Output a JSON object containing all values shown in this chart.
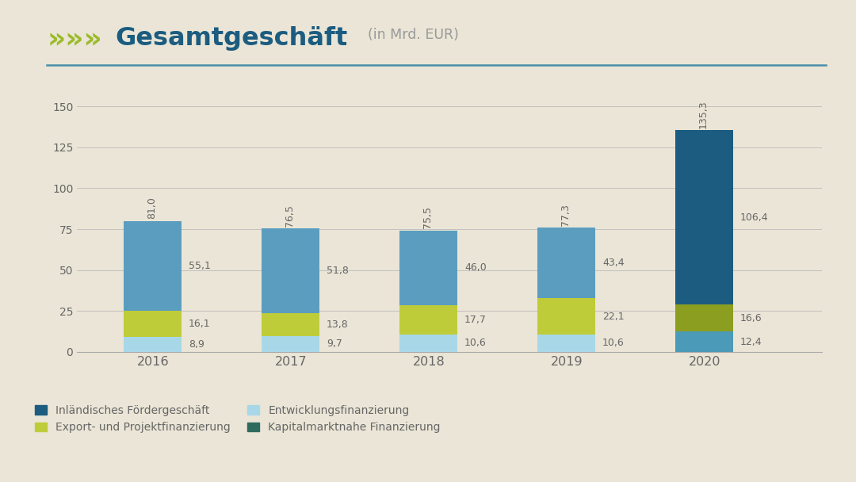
{
  "background_color": "#EAE5D6",
  "years": [
    "2016",
    "2017",
    "2018",
    "2019",
    "2020"
  ],
  "segments_order": [
    "Entwicklungsfinanzierung",
    "Export- und Projektfinanzierung",
    "Inländisches Fördergeschäft"
  ],
  "segments": {
    "Entwicklungsfinanzierung": [
      8.9,
      9.7,
      10.6,
      10.6,
      12.4
    ],
    "Export- und Projektfinanzierung": [
      16.1,
      13.8,
      17.7,
      22.1,
      16.6
    ],
    "Inländisches Fördergeschäft": [
      55.1,
      51.8,
      46.0,
      43.4,
      106.4
    ]
  },
  "totals": [
    81.0,
    76.5,
    75.5,
    77.3,
    135.3
  ],
  "colors_normal": {
    "Inländisches Fördergeschäft": "#5B9DBF",
    "Export- und Projektfinanzierung": "#BFCC3A",
    "Entwicklungsfinanzierung": "#A8D8E8",
    "Kapitalmarktnahe Finanzierung": "#2E6B5E"
  },
  "colors_2020": {
    "Inländisches Fördergeschäft": "#1B5C80",
    "Export- und Projektfinanzierung": "#8C9E20",
    "Entwicklungsfinanzierung": "#4A9AB8",
    "Kapitalmarktnahe Finanzierung": "#2E6B5E"
  },
  "ylim": [
    0,
    165
  ],
  "yticks": [
    0,
    25,
    50,
    75,
    100,
    125,
    150
  ],
  "accent_color": "#9BBB2A",
  "title_color": "#1B5C80",
  "line_color": "#4A8FAA",
  "label_color": "#666666",
  "bar_width": 0.42,
  "legend_order": [
    "Inländisches Fördergeschäft",
    "Export- und Projektfinanzierung",
    "Entwicklungsfinanzierung",
    "Kapitalmarktnahe Finanzierung"
  ],
  "legend_colors": {
    "Inländisches Fördergeschäft": "#1B5C80",
    "Export- und Projektfinanzierung": "#BFCC3A",
    "Entwicklungsfinanzierung": "#A8D8E8",
    "Kapitalmarktnahe Finanzierung": "#2E6B5E"
  }
}
